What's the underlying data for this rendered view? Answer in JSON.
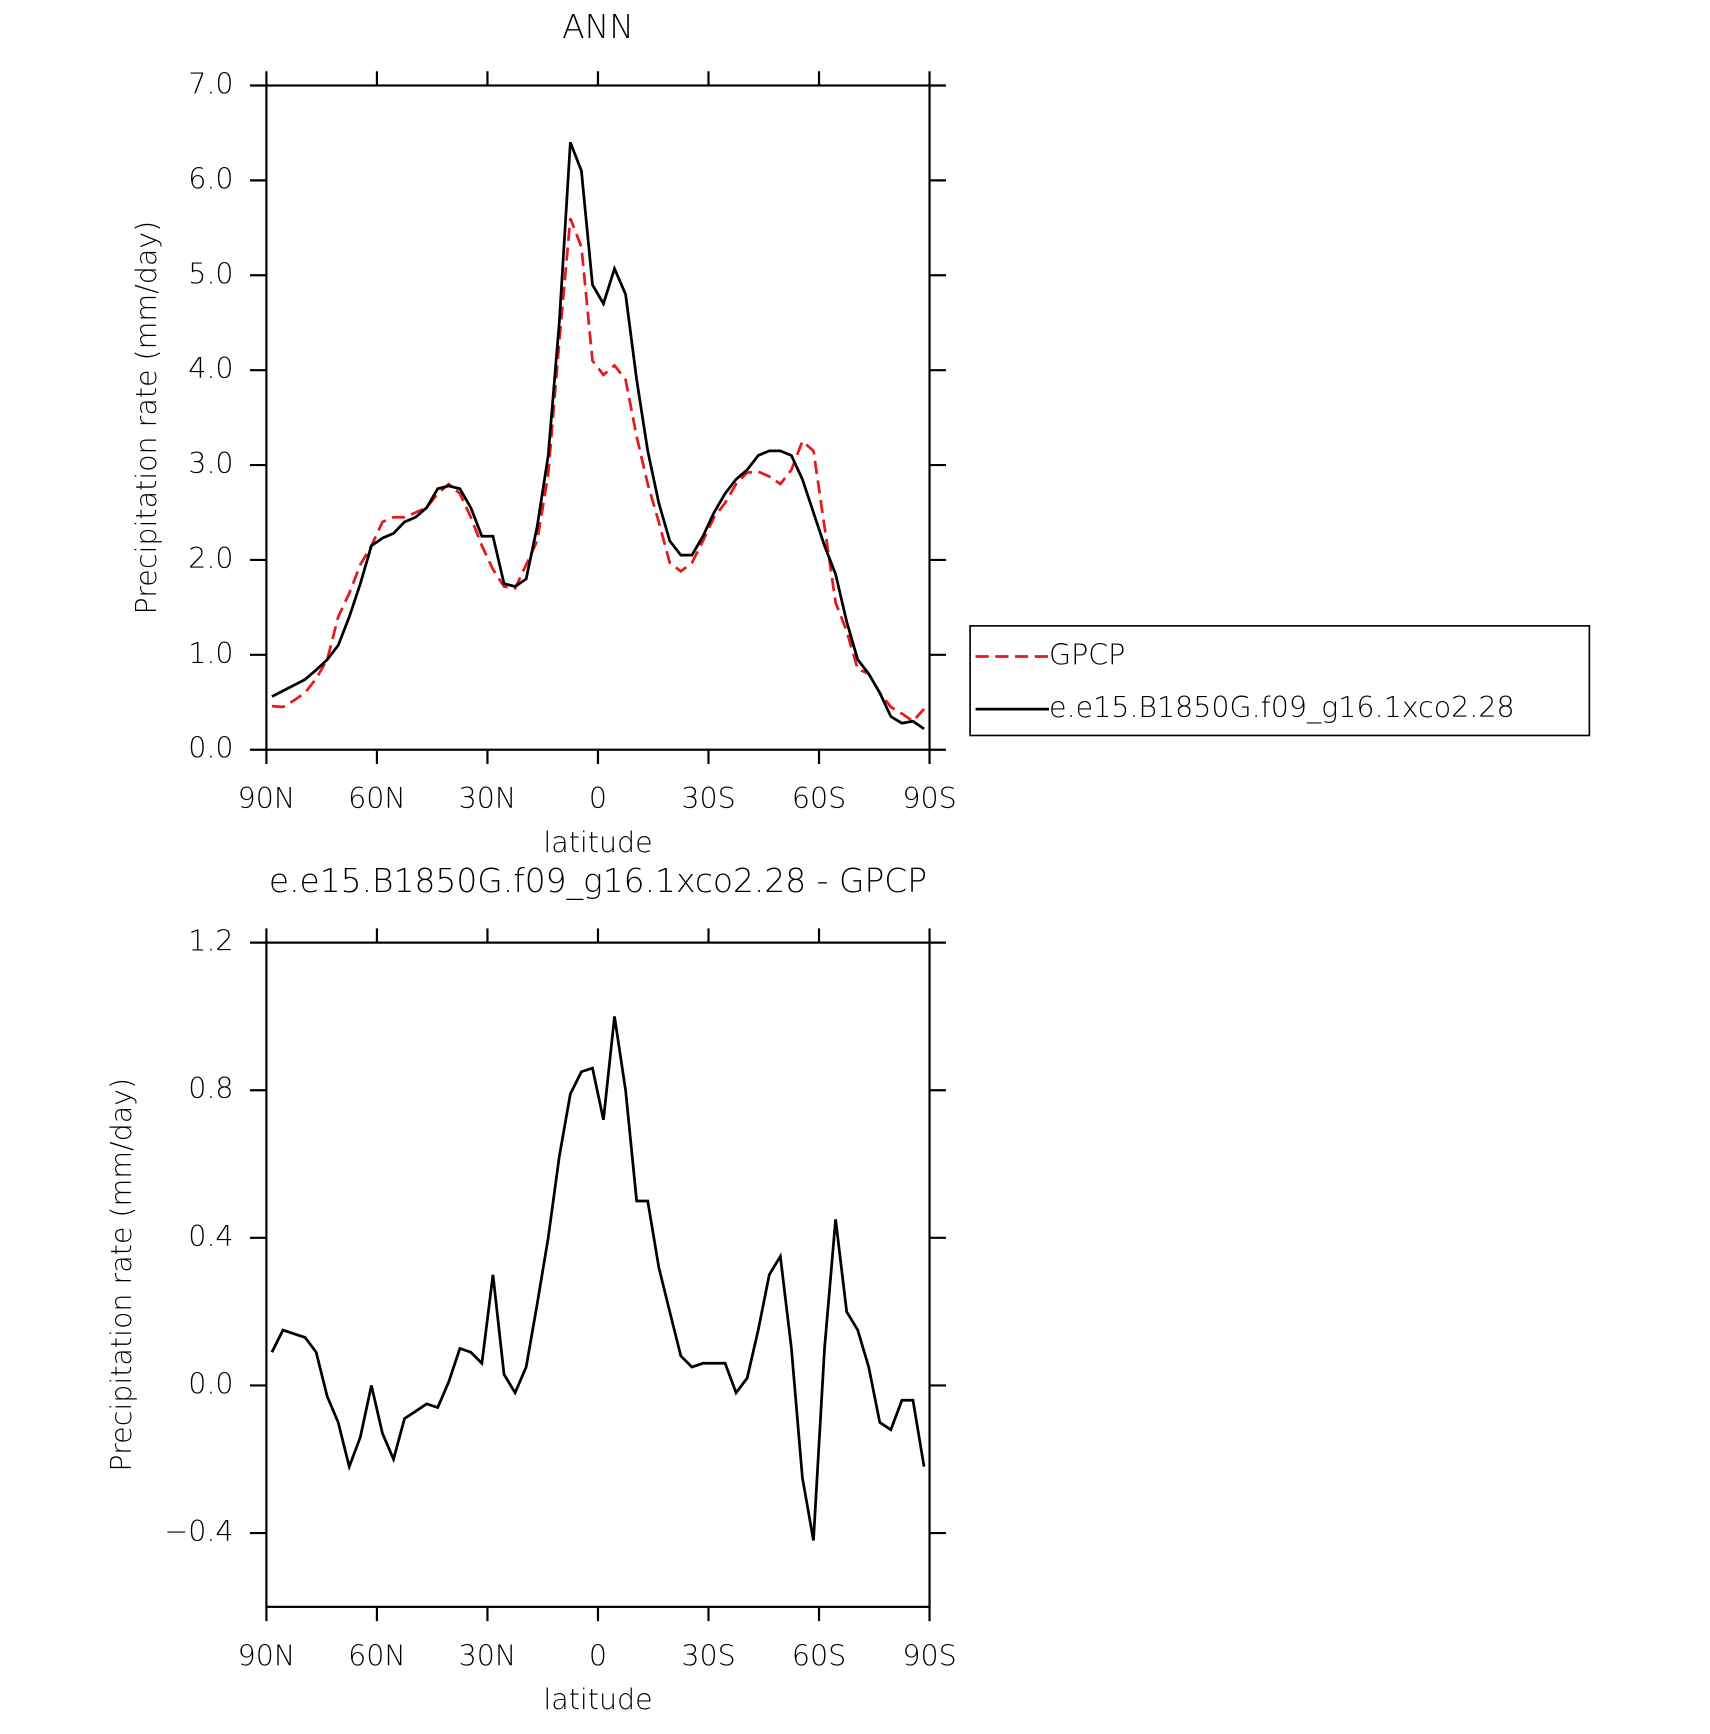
{
  "chart_data": [
    {
      "type": "line",
      "title": "ANN",
      "x_label": "latitude",
      "y_label": "Precipitation rate (mm/day)",
      "x": [
        88.5,
        85.5,
        82.5,
        79.5,
        76.5,
        73.5,
        70.5,
        67.5,
        64.5,
        61.5,
        58.5,
        55.5,
        52.5,
        49.5,
        46.5,
        43.5,
        40.5,
        37.5,
        34.5,
        31.5,
        28.5,
        25.5,
        22.5,
        19.5,
        16.5,
        13.5,
        10.5,
        7.5,
        4.5,
        1.5,
        -1.5,
        -4.5,
        -7.5,
        -10.5,
        -13.5,
        -16.5,
        -19.5,
        -22.5,
        -25.5,
        -28.5,
        -31.5,
        -34.5,
        -37.5,
        -40.5,
        -43.5,
        -46.5,
        -49.5,
        -52.5,
        -55.5,
        -58.5,
        -61.5,
        -64.5,
        -67.5,
        -70.5,
        -73.5,
        -76.5,
        -79.5,
        -82.5,
        -85.5,
        -88.5
      ],
      "series": [
        {
          "name": "GPCP",
          "color": "#e41a1c",
          "dashed": true,
          "values": [
            0.46,
            0.45,
            0.52,
            0.6,
            0.75,
            0.95,
            1.4,
            1.65,
            1.95,
            2.15,
            2.4,
            2.45,
            2.45,
            2.5,
            2.55,
            2.7,
            2.8,
            2.7,
            2.45,
            2.15,
            1.9,
            1.72,
            1.7,
            1.95,
            2.2,
            2.9,
            4.3,
            5.6,
            5.3,
            4.1,
            3.95,
            4.05,
            3.9,
            3.3,
            2.8,
            2.4,
            1.97,
            1.88,
            1.97,
            2.2,
            2.45,
            2.6,
            2.8,
            2.92,
            2.93,
            2.88,
            2.8,
            2.95,
            3.25,
            3.15,
            2.35,
            1.55,
            1.25,
            0.85,
            0.8,
            0.6,
            0.45,
            0.38,
            0.3,
            0.43
          ]
        },
        {
          "name": "e.e15.B1850G.f09_g16.1xco2.28",
          "color": "#000000",
          "dashed": false,
          "values": [
            0.56,
            0.62,
            0.68,
            0.74,
            0.84,
            0.95,
            1.1,
            1.4,
            1.75,
            2.15,
            2.23,
            2.28,
            2.4,
            2.45,
            2.55,
            2.75,
            2.78,
            2.75,
            2.55,
            2.25,
            2.25,
            1.75,
            1.72,
            1.8,
            2.35,
            3.1,
            4.5,
            6.4,
            6.1,
            4.9,
            4.7,
            5.07,
            4.8,
            3.9,
            3.15,
            2.6,
            2.2,
            2.05,
            2.05,
            2.25,
            2.5,
            2.7,
            2.85,
            2.95,
            3.1,
            3.15,
            3.15,
            3.1,
            2.85,
            2.5,
            2.15,
            1.85,
            1.35,
            0.95,
            0.8,
            0.6,
            0.35,
            0.28,
            0.3,
            0.22
          ]
        }
      ],
      "xlim": [
        90,
        -90
      ],
      "xticks": [
        {
          "value": 90,
          "label": "90N"
        },
        {
          "value": 60,
          "label": "60N"
        },
        {
          "value": 30,
          "label": "30N"
        },
        0,
        {
          "value": -30,
          "label": "30S"
        },
        {
          "value": -60,
          "label": "60S"
        },
        {
          "value": -90,
          "label": "90S"
        }
      ],
      "ylim": [
        0,
        7
      ],
      "yticks": [
        {
          "value": 0,
          "label": "0.0"
        },
        {
          "value": 1,
          "label": "1.0"
        },
        {
          "value": 2,
          "label": "2.0"
        },
        {
          "value": 3,
          "label": "3.0"
        },
        {
          "value": 4,
          "label": "4.0"
        },
        {
          "value": 5,
          "label": "5.0"
        },
        {
          "value": 6,
          "label": "6.0"
        },
        {
          "value": 7,
          "label": "7.0"
        }
      ],
      "legend": "right"
    },
    {
      "type": "line",
      "title": "e.e15.B1850G.f09_g16.1xco2.28 - GPCP",
      "x_label": "latitude",
      "y_label": "Precipitation rate (mm/day)",
      "x": [
        88.5,
        85.5,
        82.5,
        79.5,
        76.5,
        73.5,
        70.5,
        67.5,
        64.5,
        61.5,
        58.5,
        55.5,
        52.5,
        49.5,
        46.5,
        43.5,
        40.5,
        37.5,
        34.5,
        31.5,
        28.5,
        25.5,
        22.5,
        19.5,
        16.5,
        13.5,
        10.5,
        7.5,
        4.5,
        1.5,
        -1.5,
        -4.5,
        -7.5,
        -10.5,
        -13.5,
        -16.5,
        -19.5,
        -22.5,
        -25.5,
        -28.5,
        -31.5,
        -34.5,
        -37.5,
        -40.5,
        -43.5,
        -46.5,
        -49.5,
        -52.5,
        -55.5,
        -58.5,
        -61.5,
        -64.5,
        -67.5,
        -70.5,
        -73.5,
        -76.5,
        -79.5,
        -82.5,
        -85.5,
        -88.5
      ],
      "values": [
        0.09,
        0.15,
        0.14,
        0.13,
        0.09,
        -0.03,
        -0.1,
        -0.22,
        -0.14,
        0.0,
        -0.13,
        -0.2,
        -0.09,
        -0.07,
        -0.05,
        -0.06,
        0.01,
        0.1,
        0.09,
        0.06,
        0.3,
        0.03,
        -0.02,
        0.05,
        0.22,
        0.4,
        0.62,
        0.79,
        0.85,
        0.86,
        0.72,
        1.0,
        0.8,
        0.5,
        0.5,
        0.32,
        0.2,
        0.08,
        0.05,
        0.06,
        0.06,
        0.06,
        -0.02,
        0.02,
        0.15,
        0.3,
        0.35,
        0.1,
        -0.25,
        -0.42,
        0.1,
        0.45,
        0.2,
        0.15,
        0.05,
        -0.1,
        -0.12,
        -0.04,
        -0.04,
        -0.22
      ],
      "color": "#000000",
      "xlim": [
        90,
        -90
      ],
      "xticks": [
        {
          "value": 90,
          "label": "90N"
        },
        {
          "value": 60,
          "label": "60N"
        },
        {
          "value": 30,
          "label": "30N"
        },
        0,
        {
          "value": -30,
          "label": "30S"
        },
        {
          "value": -60,
          "label": "60S"
        },
        {
          "value": -90,
          "label": "90S"
        }
      ],
      "ylim": [
        -0.6,
        1.2
      ],
      "yticks": [
        {
          "value": 1.2,
          "label": "1.2"
        },
        {
          "value": 0.8,
          "label": "0.8"
        },
        {
          "value": 0.4,
          "label": "0.4"
        },
        {
          "value": 0,
          "label": "0.0"
        },
        {
          "value": -0.4,
          "label": "−0.4"
        }
      ]
    }
  ]
}
